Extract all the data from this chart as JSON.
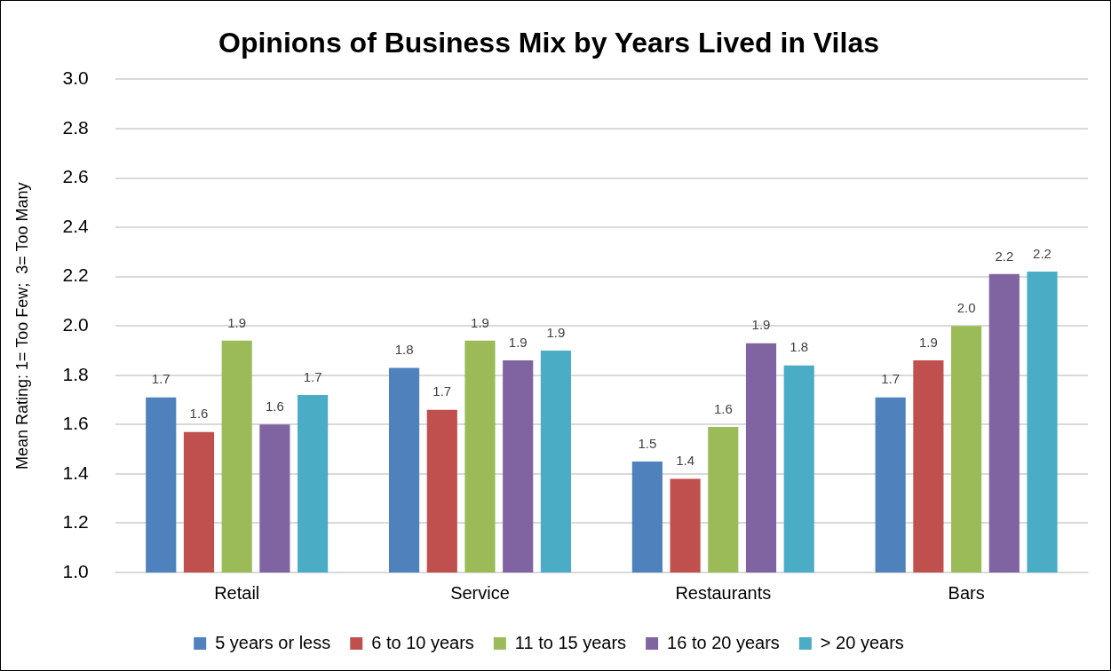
{
  "chart_data": {
    "type": "bar",
    "title": "Opinions of Business Mix by Years Lived in Vilas",
    "ylabel": "Mean Rating: 1= Too Few;  3= Too Many",
    "categories": [
      "Retail",
      "Service",
      "Restaurants",
      "Bars"
    ],
    "series": [
      {
        "name": "5 years or less",
        "color": "#4f81bd",
        "values": [
          1.71,
          1.83,
          1.45,
          1.71
        ],
        "value_labels": [
          "1.7",
          "1.8",
          "1.5",
          "1.7"
        ]
      },
      {
        "name": "6 to 10 years",
        "color": "#c0504d",
        "values": [
          1.57,
          1.66,
          1.38,
          1.86
        ],
        "value_labels": [
          "1.6",
          "1.7",
          "1.4",
          "1.9"
        ]
      },
      {
        "name": "11 to 15 years",
        "color": "#9bbb59",
        "values": [
          1.94,
          1.94,
          1.59,
          2.0
        ],
        "value_labels": [
          "1.9",
          "1.9",
          "1.6",
          "2.0"
        ]
      },
      {
        "name": "16 to 20 years",
        "color": "#8064a2",
        "values": [
          1.6,
          1.86,
          1.93,
          2.21
        ],
        "value_labels": [
          "1.6",
          "1.9",
          "1.9",
          "2.2"
        ]
      },
      {
        "name": "> 20 years",
        "color": "#4bacc6",
        "values": [
          1.72,
          1.9,
          1.84,
          2.22
        ],
        "value_labels": [
          "1.7",
          "1.9",
          "1.8",
          "2.2"
        ]
      }
    ],
    "ylim": [
      1.0,
      3.0
    ],
    "yticks": [
      {
        "value": 1,
        "label": "1.0"
      },
      {
        "value": 1.2,
        "label": "1.2"
      },
      {
        "value": 1.4,
        "label": "1.4"
      },
      {
        "value": 1.6,
        "label": "1.6"
      },
      {
        "value": 1.8,
        "label": "1.8"
      },
      {
        "value": 2,
        "label": "2.0"
      },
      {
        "value": 2.2,
        "label": "2.2"
      },
      {
        "value": 2.4,
        "label": "2.4"
      },
      {
        "value": 2.6,
        "label": "2.6"
      },
      {
        "value": 2.8,
        "label": "2.8"
      },
      {
        "value": 3,
        "label": "3.0"
      }
    ],
    "grid": "y",
    "legend": "bottom"
  }
}
